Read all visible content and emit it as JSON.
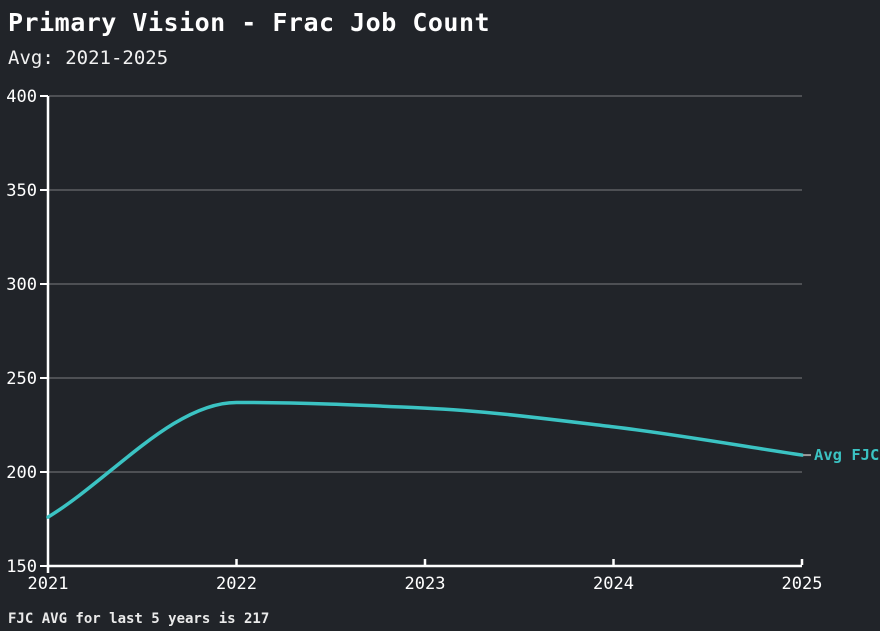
{
  "header": {
    "title": "Primary Vision - Frac Job Count",
    "subtitle": "Avg: 2021-2025"
  },
  "footer": {
    "note": "FJC AVG for last 5 years is 217"
  },
  "colors": {
    "background": "#212429",
    "line": "#3bc3c3",
    "grid": "#54575b",
    "axis": "#ffffff",
    "tick_text": "#ffffff",
    "connector": "#999999",
    "footer_text": "#eaeaea"
  },
  "chart_data": {
    "type": "line",
    "title": "Primary Vision - Frac Job Count",
    "subtitle": "Avg: 2021-2025",
    "x": [
      2021,
      2022,
      2023,
      2024,
      2025
    ],
    "series": [
      {
        "name": "Avg FJC",
        "values": [
          176,
          237,
          234,
          224,
          209
        ]
      }
    ],
    "xlabel": "",
    "ylabel": "",
    "ylim": [
      150,
      400
    ],
    "yticks": [
      150,
      200,
      250,
      300,
      350,
      400
    ],
    "xticks": [
      2021,
      2022,
      2023,
      2024,
      2025
    ],
    "grid": "horizontal",
    "smooth": true,
    "legend": "end-of-line-label",
    "end_label": "Avg FJC",
    "annotation": "FJC AVG for last 5 years is 217"
  }
}
